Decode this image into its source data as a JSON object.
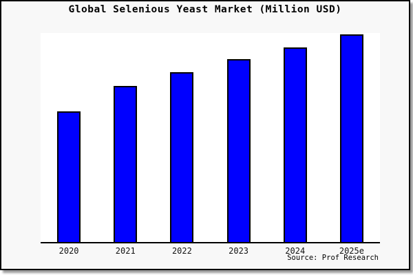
{
  "window": {
    "background_color": "#f8f8f8",
    "border_color": "#000000"
  },
  "chart_data": {
    "type": "bar",
    "title": "Global Selenious Yeast Market (Million USD)",
    "categories": [
      "2020",
      "2021",
      "2022",
      "2023",
      "2024",
      "2025e"
    ],
    "values": [
      62.5,
      74.7,
      81.3,
      87.5,
      93.1,
      99.3
    ],
    "values_note": "relative scale 0-100 estimated from bar pixel heights; y-axis has no ticks or labels in the image",
    "xlabel": "",
    "ylabel": "",
    "ylim": [
      0,
      100
    ],
    "grid": false,
    "legend": false,
    "y_axis_visible": false,
    "bar_color": "#0000ff",
    "bar_border_color": "#000000",
    "axis_color": "#000000",
    "plot_background": "#ffffff"
  },
  "source": {
    "label": "Source: Prof Research"
  }
}
